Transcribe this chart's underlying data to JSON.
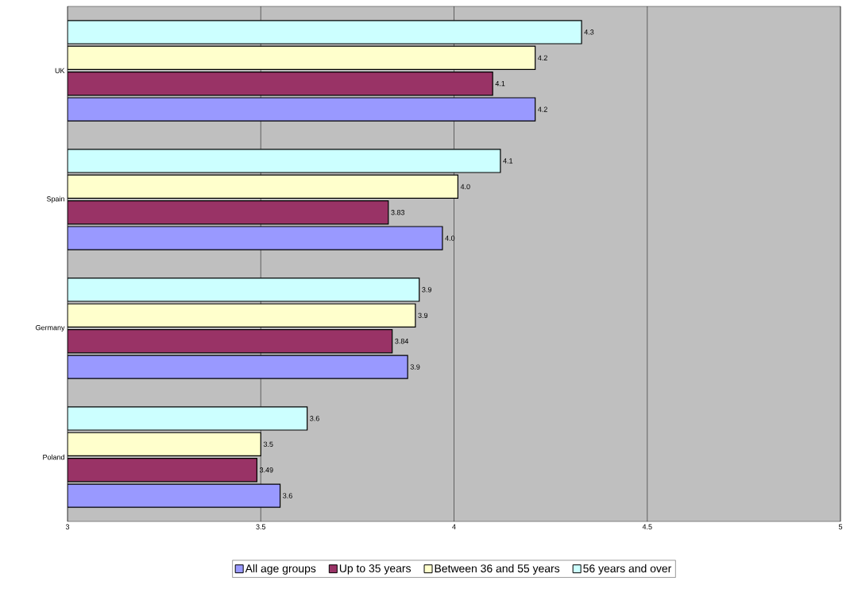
{
  "chart_data": {
    "type": "bar",
    "orientation": "horizontal",
    "categories": [
      "UK",
      "Spain",
      "Germany",
      "Poland"
    ],
    "series": [
      {
        "name": "All age groups",
        "color": "#9999ff",
        "values": [
          4.21,
          3.97,
          3.88,
          3.55
        ],
        "value_labels": [
          "4.2",
          "4.0",
          "3.9",
          "3.6"
        ]
      },
      {
        "name": "Up to 35 years",
        "color": "#993366",
        "values": [
          4.1,
          3.83,
          3.84,
          3.49
        ],
        "value_labels": [
          "4.1",
          "3.83",
          "3.84",
          "3.49"
        ]
      },
      {
        "name": "Between 36 and 55 years",
        "color": "#ffffcc",
        "values": [
          4.21,
          4.01,
          3.9,
          3.5
        ],
        "value_labels": [
          "4.2",
          "4.0",
          "3.9",
          "3.5"
        ]
      },
      {
        "name": "56 years and over",
        "color": "#ccffff",
        "values": [
          4.33,
          4.12,
          3.91,
          3.62
        ],
        "value_labels": [
          "4.3",
          "4.1",
          "3.9",
          "3.6"
        ]
      }
    ],
    "xlim": [
      3,
      5
    ],
    "xticks": [
      3,
      3.5,
      4,
      4.5,
      5
    ],
    "grid": "x",
    "legend": "bottom"
  }
}
